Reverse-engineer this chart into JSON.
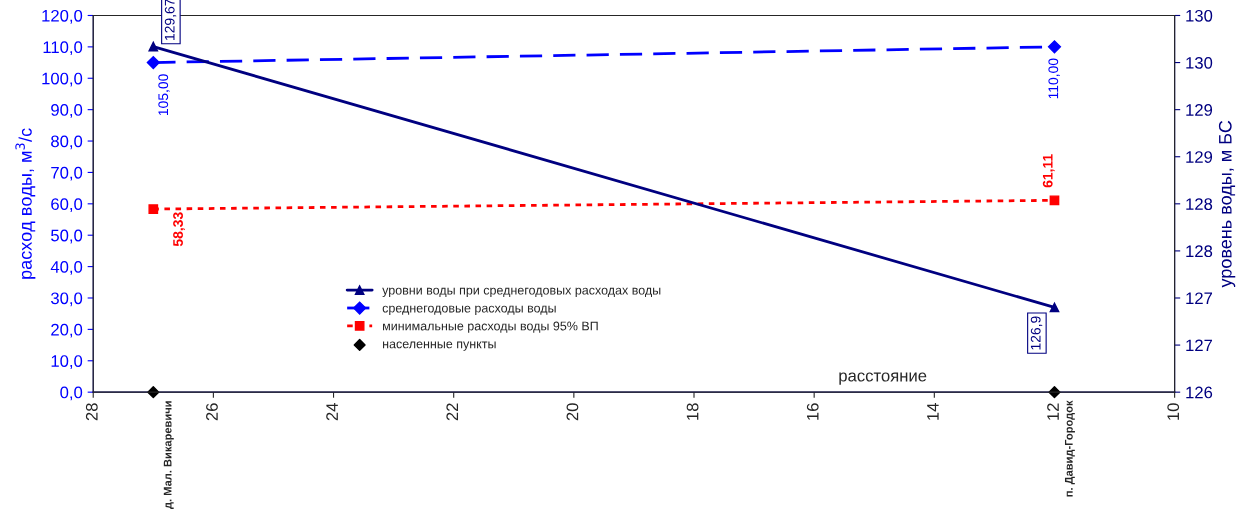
{
  "chart_data": {
    "type": "line",
    "ylabel": "расход воды, м$^{3}$/с",
    "y2label": "уровень воды, м БС",
    "x": [
      27,
      12
    ],
    "xlim": [
      28,
      10
    ],
    "xticks": [
      28,
      26,
      24,
      22,
      20,
      18,
      16,
      14,
      12,
      10
    ],
    "ylim": [
      0,
      120
    ],
    "yticks": [
      {
        "value": 0,
        "label": "0,0"
      },
      {
        "value": 10,
        "label": "10,0"
      },
      {
        "value": 20,
        "label": "20,0"
      },
      {
        "value": 30,
        "label": "30,0"
      },
      {
        "value": 40,
        "label": "40,0"
      },
      {
        "value": 50,
        "label": "50,0"
      },
      {
        "value": 60,
        "label": "60,0"
      },
      {
        "value": 70,
        "label": "70,0"
      },
      {
        "value": 80,
        "label": "80,0"
      },
      {
        "value": 90,
        "label": "90,0"
      },
      {
        "value": 100,
        "label": "100,0"
      },
      {
        "value": 110,
        "label": "110,0"
      },
      {
        "value": 120,
        "label": "120,0"
      }
    ],
    "y2lim": [
      126,
      130
    ],
    "y2ticks": [
      {
        "value": 126,
        "label": "126"
      },
      {
        "value": 126.5,
        "label": "127"
      },
      {
        "value": 127,
        "label": "127"
      },
      {
        "value": 127.5,
        "label": "128"
      },
      {
        "value": 128,
        "label": "128"
      },
      {
        "value": 128.5,
        "label": "129"
      },
      {
        "value": 129,
        "label": "129"
      },
      {
        "value": 129.5,
        "label": "130"
      },
      {
        "value": 130,
        "label": "130"
      }
    ],
    "grid": false,
    "legend": "bottom",
    "series": [
      {
        "name": "уровни воды при среднегодовых расходах воды",
        "color": "#000080",
        "axis": "y2",
        "values": [
          129.67,
          126.9
        ],
        "marker": "triangle",
        "line_style": "solid",
        "value_labels": [
          "129,67",
          "126,9"
        ]
      },
      {
        "name": "среднегодовые расходы воды",
        "color": "#0000ff",
        "values": [
          105,
          110
        ],
        "marker": "diamond",
        "line_style": "dashed",
        "value_labels": [
          "105,00",
          "110,00"
        ]
      },
      {
        "name": "минимальные расходы воды 95% ВП",
        "color": "#ff0000",
        "values": [
          58.33,
          61.11
        ],
        "marker": "square",
        "line_style": "dotted",
        "value_labels": [
          "58,33",
          "61,11"
        ]
      },
      {
        "name": "населенные пункты",
        "color": "#000000",
        "type": "scatter",
        "values": [
          0,
          0
        ],
        "marker": "diamond"
      }
    ],
    "annotations": [
      {
        "text": "д. Мал. Викаревичи",
        "x": 27,
        "y": 0
      },
      {
        "text": "п. Давид-Городок",
        "x": 12,
        "y": 0
      },
      "расстояние"
    ]
  }
}
